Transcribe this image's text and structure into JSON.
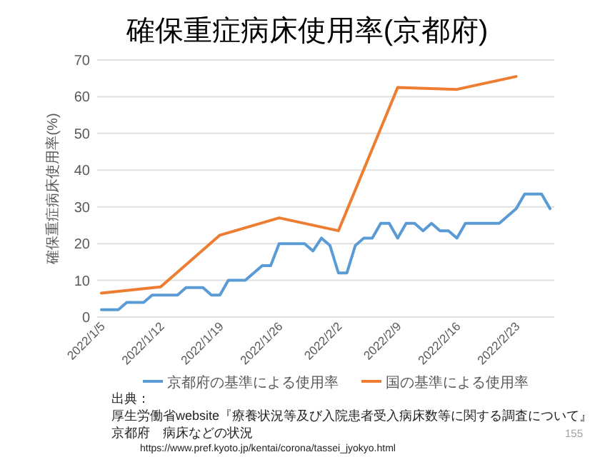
{
  "chart_data": {
    "type": "line",
    "title": "確保重症病床使用率(京都府)",
    "ylabel": "確保重症病床使用率(%)",
    "xlim": [
      "2022-01-04T12:00",
      "2022-02-27T12:00"
    ],
    "xticks": [
      {
        "value": "2022-01-05",
        "label": "2022/1/5"
      },
      {
        "value": "2022-01-12",
        "label": "2022/1/12"
      },
      {
        "value": "2022-01-19",
        "label": "2022/1/19"
      },
      {
        "value": "2022-01-26",
        "label": "2022/1/26"
      },
      {
        "value": "2022-02-02",
        "label": "2022/2/2"
      },
      {
        "value": "2022-02-09",
        "label": "2022/2/9"
      },
      {
        "value": "2022-02-16",
        "label": "2022/2/16"
      },
      {
        "value": "2022-02-23",
        "label": "2022/2/23"
      }
    ],
    "ylim": [
      0,
      70
    ],
    "yticks": [
      0,
      10,
      20,
      30,
      40,
      50,
      60,
      70
    ],
    "grid": "y",
    "legend": "bottom",
    "series": [
      {
        "name": "京都府の基準による使用率",
        "color": "#5b9bd5",
        "x": [
          "2022-01-05",
          "2022-01-06",
          "2022-01-07",
          "2022-01-08",
          "2022-01-09",
          "2022-01-10",
          "2022-01-11",
          "2022-01-12",
          "2022-01-13",
          "2022-01-14",
          "2022-01-15",
          "2022-01-16",
          "2022-01-17",
          "2022-01-18",
          "2022-01-19",
          "2022-01-20",
          "2022-01-21",
          "2022-01-22",
          "2022-01-23",
          "2022-01-24",
          "2022-01-25",
          "2022-01-26",
          "2022-01-27",
          "2022-01-28",
          "2022-01-29",
          "2022-01-30",
          "2022-01-31",
          "2022-02-01",
          "2022-02-02",
          "2022-02-03",
          "2022-02-04",
          "2022-02-05",
          "2022-02-06",
          "2022-02-07",
          "2022-02-08",
          "2022-02-09",
          "2022-02-10",
          "2022-02-11",
          "2022-02-12",
          "2022-02-13",
          "2022-02-14",
          "2022-02-15",
          "2022-02-16",
          "2022-02-17",
          "2022-02-18",
          "2022-02-19",
          "2022-02-20",
          "2022-02-21",
          "2022-02-22",
          "2022-02-23",
          "2022-02-24",
          "2022-02-25",
          "2022-02-26",
          "2022-02-27"
        ],
        "values": [
          2,
          2,
          2,
          4,
          4,
          4,
          6,
          6,
          6,
          6,
          8,
          8,
          8,
          6,
          6,
          10,
          10,
          10,
          12,
          14,
          14,
          20,
          20,
          20,
          20,
          18,
          21.5,
          19.5,
          12,
          12,
          19.5,
          21.5,
          21.5,
          25.5,
          25.5,
          21.5,
          25.5,
          25.5,
          23.5,
          25.5,
          23.5,
          23.5,
          21.5,
          25.5,
          25.5,
          25.5,
          25.5,
          25.5,
          27.5,
          29.5,
          33.5,
          33.5,
          33.5,
          29.5
        ]
      },
      {
        "name": "国の基準による使用率",
        "color": "#ed7d31",
        "x": [
          "2022-01-05",
          "2022-01-12",
          "2022-01-19",
          "2022-01-26",
          "2022-02-02",
          "2022-02-09",
          "2022-02-16",
          "2022-02-23"
        ],
        "values": [
          6.5,
          8.2,
          22.3,
          27,
          23.5,
          62.5,
          62,
          65.5
        ]
      }
    ],
    "annotations": [
      "出典：",
      "厚生労働省website『療養状況等及び入院患者受入病床数等に関する調査について』",
      "京都府　病床などの状況",
      "https://www.pref.kyoto.jp/kentai/corona/tassei_jyokyo.html",
      "155"
    ]
  }
}
